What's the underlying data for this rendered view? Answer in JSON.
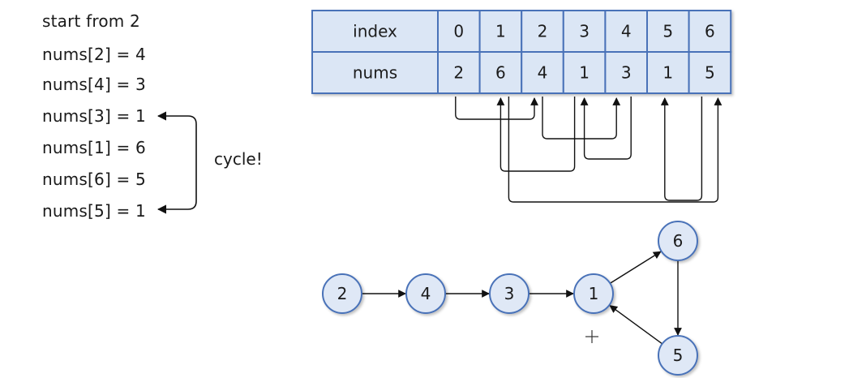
{
  "steps": [
    {
      "text": "start from 2"
    },
    {
      "text": "nums[2] = 4"
    },
    {
      "text": "nums[4] = 3"
    },
    {
      "text": "nums[3] = 1"
    },
    {
      "text": "nums[1] = 6"
    },
    {
      "text": "nums[6] = 5"
    },
    {
      "text": "nums[5] = 1"
    }
  ],
  "cycle_label": "cycle!",
  "table": {
    "row_headers": [
      "index",
      "nums"
    ],
    "index": [
      "0",
      "1",
      "2",
      "3",
      "4",
      "5",
      "6"
    ],
    "nums": [
      "2",
      "6",
      "4",
      "1",
      "3",
      "1",
      "5"
    ]
  },
  "graph": {
    "nodes": [
      "2",
      "4",
      "3",
      "1",
      "6",
      "5"
    ],
    "edges": [
      [
        "2",
        "4"
      ],
      [
        "4",
        "3"
      ],
      [
        "3",
        "1"
      ],
      [
        "1",
        "6"
      ],
      [
        "6",
        "5"
      ],
      [
        "5",
        "1"
      ]
    ]
  },
  "colors": {
    "cell_fill": "#dbe6f5",
    "cell_border": "#4a72b8",
    "node_fill": "#dfe8f6",
    "node_border": "#4a72b8",
    "arrow": "#111111"
  }
}
